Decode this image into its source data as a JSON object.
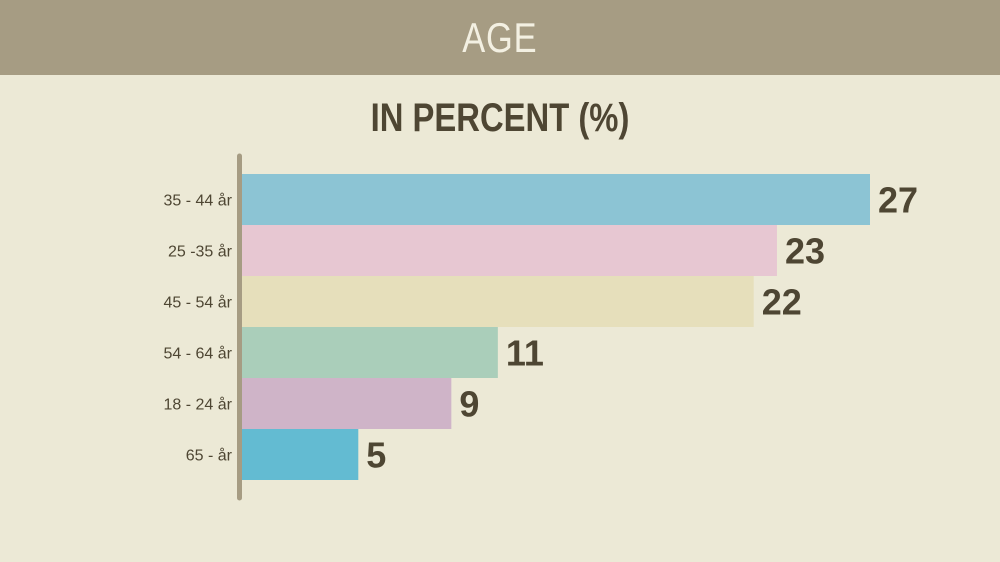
{
  "header": {
    "title": "AGE"
  },
  "chart_data": {
    "type": "bar",
    "orientation": "horizontal",
    "title": "IN PERCENT (%)",
    "categories": [
      "35 - 44 år",
      "25 -35 år",
      "45 - 54 år",
      "54 - 64 år",
      "18 - 24 år",
      "65 -  år"
    ],
    "values": [
      27,
      23,
      22,
      11,
      9,
      5
    ],
    "colors": [
      "#8cc4d4",
      "#e7c7d2",
      "#e6dfbb",
      "#aaceba",
      "#cfb4c8",
      "#63bbd2"
    ],
    "xlim": [
      0,
      27
    ],
    "grid": false,
    "data_labels": true
  }
}
